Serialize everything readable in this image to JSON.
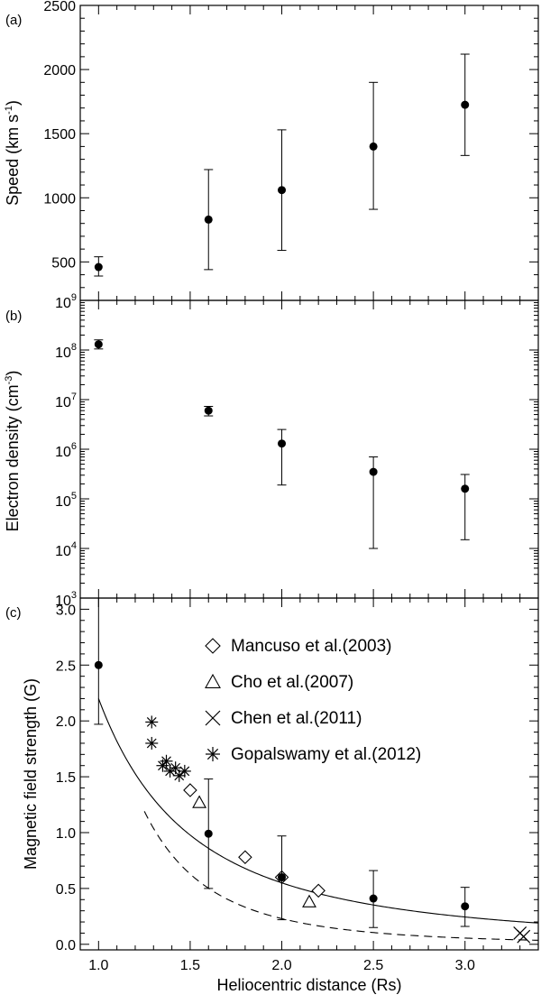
{
  "chart_data": [
    {
      "panel_label": "(a)",
      "type": "scatter",
      "ylabel": "Speed (km s",
      "ylabel_sup": "-1",
      "ylabel_end": ")",
      "xlim": [
        0.9,
        3.4
      ],
      "ylim": [
        200,
        2500
      ],
      "yticks": [
        500,
        1000,
        1500,
        2000,
        2500
      ],
      "ytick_labels": [
        "500",
        "1000",
        "1500",
        "2000",
        "2500"
      ],
      "points": [
        {
          "x": 1.0,
          "y": 460,
          "err_low": 390,
          "err_high": 540
        },
        {
          "x": 1.6,
          "y": 830,
          "err_low": 440,
          "err_high": 1220
        },
        {
          "x": 2.0,
          "y": 1060,
          "err_low": 590,
          "err_high": 1530
        },
        {
          "x": 2.5,
          "y": 1400,
          "err_low": 910,
          "err_high": 1900
        },
        {
          "x": 3.0,
          "y": 1725,
          "err_low": 1330,
          "err_high": 2120
        }
      ]
    },
    {
      "panel_label": "(b)",
      "type": "scatter",
      "yscale": "log",
      "ylabel": "Electron density (cm",
      "ylabel_sup": "-3",
      "ylabel_end": ")",
      "xlim": [
        0.9,
        3.4
      ],
      "ylim_exp": [
        3,
        9
      ],
      "ytick_exps": [
        "3",
        "4",
        "5",
        "6",
        "7",
        "8",
        "9"
      ],
      "ytick_base": "10",
      "points": [
        {
          "x": 1.0,
          "y": 130000000.0,
          "err_low": 105000000.0,
          "err_high": 160000000.0
        },
        {
          "x": 1.6,
          "y": 6000000.0,
          "err_low": 4700000.0,
          "err_high": 7300000.0
        },
        {
          "x": 2.0,
          "y": 1300000.0,
          "err_low": 190000.0,
          "err_high": 2500000.0
        },
        {
          "x": 2.5,
          "y": 350000.0,
          "err_low": 10000.0,
          "err_high": 700000.0
        },
        {
          "x": 3.0,
          "y": 160000.0,
          "err_low": 15000.0,
          "err_high": 310000.0
        }
      ]
    },
    {
      "panel_label": "(c)",
      "type": "scatter",
      "ylabel": "Magnetic field strength (G)",
      "xlabel": "Heliocentric distance (Rs)",
      "xlim": [
        0.9,
        3.4
      ],
      "ylim": [
        -0.05,
        3.1
      ],
      "xticks": [
        1.0,
        1.5,
        2.0,
        2.5,
        3.0
      ],
      "xtick_labels": [
        "1.0",
        "1.5",
        "2.0",
        "2.5",
        "3.0"
      ],
      "yticks": [
        0.0,
        0.5,
        1.0,
        1.5,
        2.0,
        2.5,
        3.0
      ],
      "ytick_labels": [
        "0.0",
        "0.5",
        "1.0",
        "1.5",
        "2.0",
        "2.5",
        "3.0"
      ],
      "points": [
        {
          "x": 1.0,
          "y": 2.5,
          "err_low": 1.97,
          "err_high": 3.1
        },
        {
          "x": 1.6,
          "y": 0.99,
          "err_low": 0.5,
          "err_high": 1.48
        },
        {
          "x": 2.0,
          "y": 0.6,
          "err_low": 0.22,
          "err_high": 0.97
        },
        {
          "x": 2.5,
          "y": 0.41,
          "err_low": 0.15,
          "err_high": 0.66
        },
        {
          "x": 3.0,
          "y": 0.34,
          "err_low": 0.16,
          "err_high": 0.51
        }
      ],
      "solid_fit": {
        "coef": 2.2,
        "power": 2.0,
        "x_start": 1.0,
        "x_end": 3.4
      },
      "dashed_fit": {
        "coef": 2.6,
        "power": 3.5,
        "x_start": 1.25,
        "x_end": 3.4
      },
      "series": [
        {
          "name": "Mancuso et al.(2003)",
          "marker": "diamond",
          "x": [
            1.5,
            1.8,
            2.0,
            2.2
          ],
          "y": [
            1.38,
            0.78,
            0.6,
            0.48
          ]
        },
        {
          "name": "Cho et al.(2007)",
          "marker": "triangle",
          "x": [
            1.55,
            2.15
          ],
          "y": [
            1.27,
            0.38
          ]
        },
        {
          "name": "Chen et al.(2011)",
          "marker": "cross",
          "x": [
            3.3,
            3.32
          ],
          "y": [
            0.1,
            0.07
          ]
        },
        {
          "name": "Gopalswamy et al.(2012)",
          "marker": "asterisk",
          "x": [
            1.29,
            1.29,
            1.35,
            1.37,
            1.39,
            1.42,
            1.44,
            1.47
          ],
          "y": [
            1.99,
            1.8,
            1.6,
            1.64,
            1.55,
            1.58,
            1.51,
            1.55
          ]
        }
      ]
    }
  ]
}
